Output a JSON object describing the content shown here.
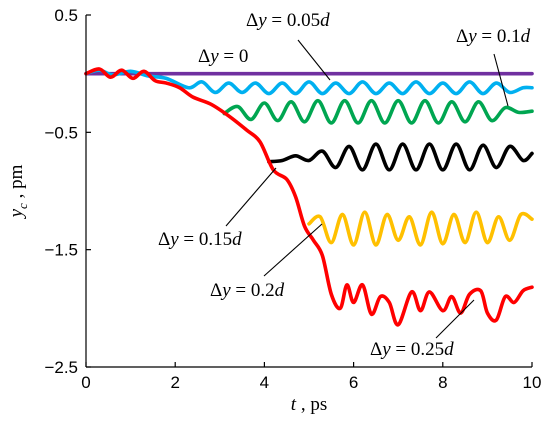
{
  "chart_data": {
    "type": "line",
    "xlabel": {
      "var": "t",
      "unit": ", ps"
    },
    "ylabel": {
      "var": "y",
      "sub": "c",
      "unit": " , pm"
    },
    "xlim": [
      0,
      10
    ],
    "ylim": [
      -2.5,
      0.5
    ],
    "xticks": [
      "0",
      "2",
      "4",
      "6",
      "8",
      "10"
    ],
    "yticks": [
      "0.5",
      "-0.5",
      "-1.5",
      "-2.5"
    ],
    "grid": false,
    "legend": "none",
    "series": [
      {
        "label": "Δy = 0",
        "delta": "Δ",
        "var": "y",
        "rhs": " = 0",
        "color": "#7030A0",
        "points": [
          [
            0,
            0
          ],
          [
            10,
            0
          ]
        ]
      },
      {
        "label": "Δy = 0.05d",
        "delta": "Δ",
        "var": "y",
        "rhs": " = 0.05",
        "d": "d",
        "color": "#00B0F0",
        "points": [
          [
            0,
            0
          ],
          [
            0.3,
            0.03
          ],
          [
            0.6,
            -0.01
          ],
          [
            1.0,
            0.02
          ],
          [
            1.4,
            -0.02
          ],
          [
            1.8,
            -0.04
          ],
          [
            2.3,
            -0.12
          ],
          [
            2.6,
            -0.07
          ],
          [
            2.9,
            -0.16
          ],
          [
            3.2,
            -0.08
          ],
          [
            3.5,
            -0.16
          ],
          [
            3.8,
            -0.08
          ],
          [
            4.1,
            -0.17
          ],
          [
            4.4,
            -0.08
          ],
          [
            4.7,
            -0.17
          ],
          [
            5.0,
            -0.07
          ],
          [
            5.3,
            -0.17
          ],
          [
            5.6,
            -0.08
          ],
          [
            5.9,
            -0.17
          ],
          [
            6.2,
            -0.07
          ],
          [
            6.5,
            -0.17
          ],
          [
            6.8,
            -0.08
          ],
          [
            7.1,
            -0.17
          ],
          [
            7.4,
            -0.07
          ],
          [
            7.7,
            -0.17
          ],
          [
            8.0,
            -0.08
          ],
          [
            8.3,
            -0.17
          ],
          [
            8.6,
            -0.07
          ],
          [
            8.9,
            -0.17
          ],
          [
            9.2,
            -0.08
          ],
          [
            9.5,
            -0.16
          ],
          [
            9.8,
            -0.12
          ],
          [
            10,
            -0.12
          ]
        ]
      },
      {
        "label": "Δy = 0.1d",
        "delta": "Δ",
        "var": "y",
        "rhs": " = 0.1",
        "d": "d",
        "color": "#00A651",
        "points": [
          [
            3.1,
            -0.34
          ],
          [
            3.4,
            -0.28
          ],
          [
            3.7,
            -0.39
          ],
          [
            4.0,
            -0.25
          ],
          [
            4.3,
            -0.4
          ],
          [
            4.6,
            -0.24
          ],
          [
            4.9,
            -0.41
          ],
          [
            5.2,
            -0.23
          ],
          [
            5.5,
            -0.42
          ],
          [
            5.8,
            -0.23
          ],
          [
            6.1,
            -0.42
          ],
          [
            6.4,
            -0.23
          ],
          [
            6.7,
            -0.42
          ],
          [
            7.0,
            -0.23
          ],
          [
            7.3,
            -0.42
          ],
          [
            7.6,
            -0.23
          ],
          [
            7.9,
            -0.42
          ],
          [
            8.2,
            -0.24
          ],
          [
            8.5,
            -0.41
          ],
          [
            8.8,
            -0.24
          ],
          [
            9.1,
            -0.4
          ],
          [
            9.4,
            -0.29
          ],
          [
            9.7,
            -0.33
          ],
          [
            10,
            -0.32
          ]
        ]
      },
      {
        "label": "Δy = 0.15d",
        "delta": "Δ",
        "var": "y",
        "rhs": " = 0.15",
        "d": "d",
        "color": "#000000",
        "points": [
          [
            4.1,
            -0.75
          ],
          [
            4.4,
            -0.74
          ],
          [
            4.7,
            -0.7
          ],
          [
            5.0,
            -0.74
          ],
          [
            5.3,
            -0.66
          ],
          [
            5.6,
            -0.8
          ],
          [
            5.9,
            -0.62
          ],
          [
            6.2,
            -0.82
          ],
          [
            6.5,
            -0.6
          ],
          [
            6.8,
            -0.82
          ],
          [
            7.1,
            -0.6
          ],
          [
            7.4,
            -0.82
          ],
          [
            7.7,
            -0.6
          ],
          [
            8.0,
            -0.82
          ],
          [
            8.3,
            -0.6
          ],
          [
            8.6,
            -0.82
          ],
          [
            8.9,
            -0.61
          ],
          [
            9.2,
            -0.8
          ],
          [
            9.5,
            -0.62
          ],
          [
            9.8,
            -0.74
          ],
          [
            10,
            -0.68
          ]
        ]
      },
      {
        "label": "Δy = 0.2d",
        "delta": "Δ",
        "var": "y",
        "rhs": " = 0.2",
        "d": "d",
        "color": "#FFC000",
        "points": [
          [
            5.0,
            -1.28
          ],
          [
            5.25,
            -1.22
          ],
          [
            5.5,
            -1.44
          ],
          [
            5.75,
            -1.2
          ],
          [
            6.0,
            -1.46
          ],
          [
            6.25,
            -1.18
          ],
          [
            6.5,
            -1.46
          ],
          [
            6.75,
            -1.2
          ],
          [
            7.0,
            -1.42
          ],
          [
            7.25,
            -1.22
          ],
          [
            7.5,
            -1.46
          ],
          [
            7.75,
            -1.18
          ],
          [
            8.0,
            -1.45
          ],
          [
            8.25,
            -1.2
          ],
          [
            8.5,
            -1.44
          ],
          [
            8.75,
            -1.18
          ],
          [
            9.0,
            -1.44
          ],
          [
            9.25,
            -1.22
          ],
          [
            9.5,
            -1.42
          ],
          [
            9.75,
            -1.2
          ],
          [
            10,
            -1.24
          ]
        ]
      },
      {
        "label": "Δy = 0.25d",
        "delta": "Δ",
        "var": "y",
        "rhs": " = 0.25",
        "d": "d",
        "color": "#FF0000",
        "points": [
          [
            0,
            0
          ],
          [
            0.3,
            0.04
          ],
          [
            0.55,
            -0.03
          ],
          [
            0.8,
            0.03
          ],
          [
            1.05,
            -0.04
          ],
          [
            1.3,
            0.02
          ],
          [
            1.55,
            -0.06
          ],
          [
            1.8,
            -0.08
          ],
          [
            2.1,
            -0.12
          ],
          [
            2.4,
            -0.2
          ],
          [
            2.8,
            -0.26
          ],
          [
            3.2,
            -0.36
          ],
          [
            3.6,
            -0.48
          ],
          [
            3.9,
            -0.58
          ],
          [
            4.2,
            -0.82
          ],
          [
            4.5,
            -0.9
          ],
          [
            4.7,
            -1.05
          ],
          [
            4.9,
            -1.3
          ],
          [
            5.1,
            -1.42
          ],
          [
            5.3,
            -1.55
          ],
          [
            5.5,
            -1.88
          ],
          [
            5.7,
            -2.0
          ],
          [
            5.85,
            -1.8
          ],
          [
            6.0,
            -1.95
          ],
          [
            6.2,
            -1.8
          ],
          [
            6.4,
            -2.05
          ],
          [
            6.6,
            -1.9
          ],
          [
            6.8,
            -1.95
          ],
          [
            7.0,
            -2.14
          ],
          [
            7.3,
            -1.86
          ],
          [
            7.5,
            -2.02
          ],
          [
            7.7,
            -1.86
          ],
          [
            8.0,
            -2.02
          ],
          [
            8.2,
            -1.9
          ],
          [
            8.4,
            -2.04
          ],
          [
            8.6,
            -1.88
          ],
          [
            8.85,
            -1.85
          ],
          [
            9.0,
            -2.04
          ],
          [
            9.2,
            -2.1
          ],
          [
            9.4,
            -1.9
          ],
          [
            9.6,
            -1.95
          ],
          [
            9.8,
            -1.85
          ],
          [
            10,
            -1.82
          ]
        ]
      }
    ]
  }
}
